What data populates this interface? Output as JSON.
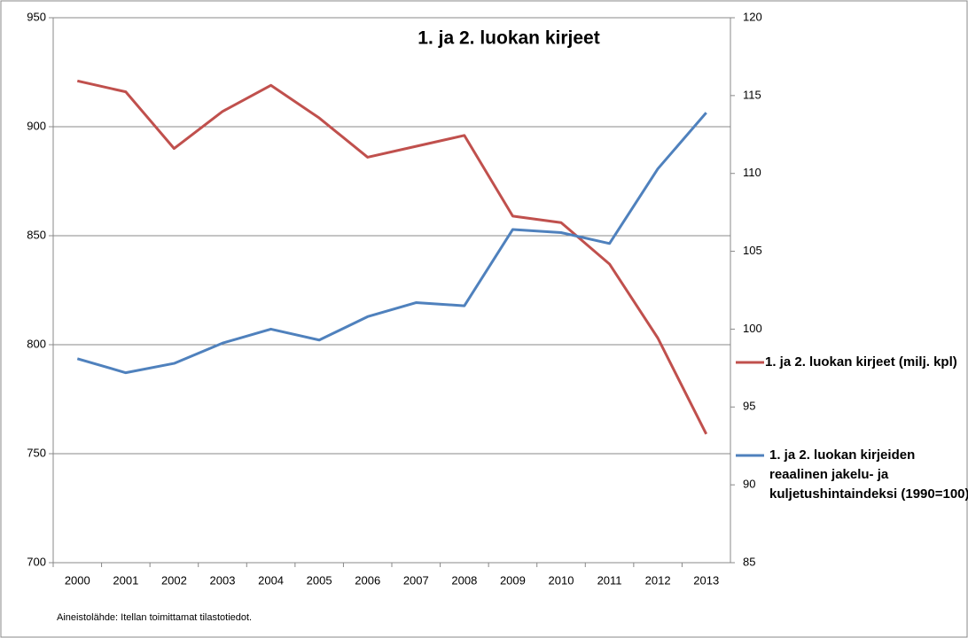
{
  "chart_data": {
    "type": "line",
    "title": "1. ja 2. luokan kirjeet",
    "source": "Aineistolähde: Itellan toimittamat tilastotiedot.",
    "categories": [
      "2000",
      "2001",
      "2002",
      "2003",
      "2004",
      "2005",
      "2006",
      "2007",
      "2008",
      "2009",
      "2010",
      "2011",
      "2012",
      "2013"
    ],
    "series": [
      {
        "name": "1. ja 2. luokan kirjeet (milj. kpl)",
        "color": "#c0504d",
        "values": [
          921,
          916,
          890,
          907,
          919,
          904,
          886,
          891,
          896,
          859,
          856,
          837,
          803,
          759
        ]
      },
      {
        "name": "1. ja 2. luokan kirjeiden reaalinen jakelu- ja kuljetushintaindeksi (1990=100)",
        "color": "#4f81bd",
        "axis": "y2",
        "values": [
          98.1,
          97.2,
          97.8,
          99.1,
          100.0,
          99.3,
          100.8,
          101.7,
          101.5,
          106.4,
          106.2,
          105.5,
          110.3,
          113.9
        ]
      }
    ],
    "ylim": [
      700,
      950
    ],
    "yticks": [
      700,
      750,
      800,
      850,
      900,
      950
    ],
    "y2lim": [
      85,
      120
    ],
    "y2ticks": [
      85,
      90,
      95,
      100,
      105,
      110,
      115,
      120
    ],
    "grid": true
  }
}
